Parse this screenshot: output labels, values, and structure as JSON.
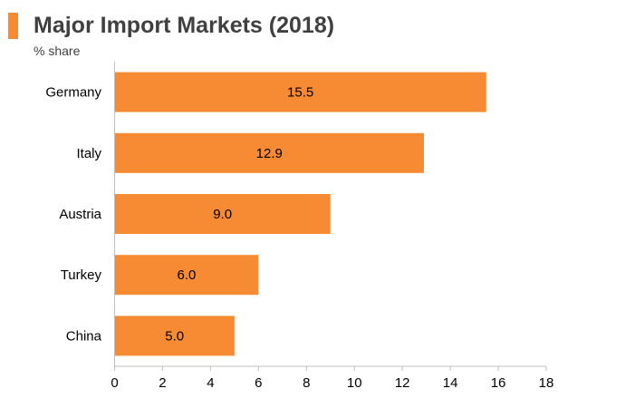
{
  "chart_data": {
    "type": "bar",
    "orientation": "horizontal",
    "title": "Major Import Markets (2018)",
    "subtitle": "% share",
    "categories": [
      "Germany",
      "Italy",
      "Austria",
      "Turkey",
      "China"
    ],
    "values": [
      15.5,
      12.9,
      9.0,
      6.0,
      5.0
    ],
    "value_labels": [
      "15.5",
      "12.9",
      "9.0",
      "6.0",
      "5.0"
    ],
    "x_ticks": [
      0,
      2,
      4,
      6,
      8,
      10,
      12,
      14,
      16,
      18
    ],
    "xlim": [
      0,
      18
    ],
    "grid": false,
    "legend": "none"
  },
  "colors": {
    "bar": "#F68B33",
    "title_marker": "#F68B33",
    "title_text": "#404040",
    "axis": "#BFBFBF"
  }
}
